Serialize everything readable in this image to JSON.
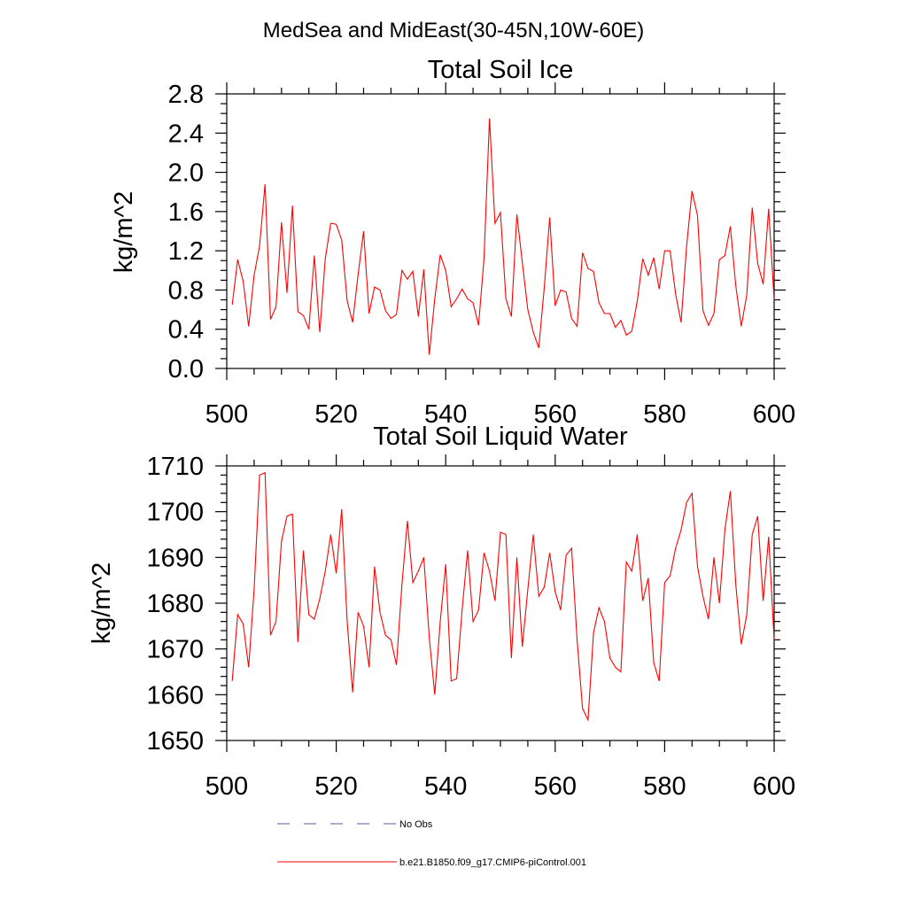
{
  "main_title": "MedSea and MidEast(30-45N,10W-60E)",
  "colors": {
    "series": "#ff0000",
    "obs": "#5a5aa0",
    "axis": "#000000"
  },
  "legend": [
    {
      "label": "No Obs",
      "color": "#5a5aa0",
      "dash": true
    },
    {
      "label": "b.e21.B1850.f09_g17.CMIP6-piControl.001",
      "color": "#ff0000",
      "dash": false
    }
  ],
  "chart_data": [
    {
      "type": "line",
      "title": "Total Soil Ice",
      "xlabel": "",
      "ylabel": "kg/m^2",
      "xlim": [
        500,
        600
      ],
      "ylim": [
        0.0,
        2.8
      ],
      "xticks": [
        500,
        520,
        540,
        560,
        580,
        600
      ],
      "xtick_labels": [
        "500",
        "520",
        "540",
        "560",
        "580",
        "600"
      ],
      "yticks": [
        0.0,
        0.4,
        0.8,
        1.2,
        1.6,
        2.0,
        2.4,
        2.8
      ],
      "ytick_labels": [
        "0.0",
        "0.4",
        "0.8",
        "1.2",
        "1.6",
        "2.0",
        "2.4",
        "2.8"
      ],
      "x_minor_step": 5,
      "y_minor_step": 0.1,
      "x_start": 501,
      "series": [
        {
          "name": "b.e21.B1850.f09_g17.CMIP6-piControl.001",
          "values": [
            0.65,
            1.11,
            0.89,
            0.43,
            0.95,
            1.25,
            1.88,
            0.5,
            0.63,
            1.49,
            0.77,
            1.66,
            0.58,
            0.54,
            0.4,
            1.15,
            0.37,
            1.12,
            1.48,
            1.47,
            1.31,
            0.69,
            0.47,
            0.96,
            1.4,
            0.56,
            0.83,
            0.8,
            0.59,
            0.51,
            0.55,
            1.0,
            0.91,
            0.99,
            0.53,
            1.01,
            0.14,
            0.71,
            1.16,
            1.0,
            0.63,
            0.71,
            0.81,
            0.71,
            0.67,
            0.44,
            1.12,
            2.55,
            1.48,
            1.59,
            0.71,
            0.53,
            1.57,
            1.08,
            0.6,
            0.37,
            0.21,
            0.82,
            1.54,
            0.64,
            0.8,
            0.78,
            0.51,
            0.43,
            1.18,
            1.02,
            0.99,
            0.67,
            0.56,
            0.56,
            0.42,
            0.49,
            0.34,
            0.38,
            0.69,
            1.12,
            0.95,
            1.13,
            0.81,
            1.2,
            1.2,
            0.76,
            0.47,
            1.24,
            1.81,
            1.56,
            0.59,
            0.44,
            0.56,
            1.11,
            1.15,
            1.45,
            0.84,
            0.43,
            0.75,
            1.64,
            1.07,
            0.86,
            1.63,
            0.7
          ]
        }
      ]
    },
    {
      "type": "line",
      "title": "Total Soil Liquid Water",
      "xlabel": "",
      "ylabel": "kg/m^2",
      "xlim": [
        500,
        600
      ],
      "ylim": [
        1650,
        1710
      ],
      "xticks": [
        500,
        520,
        540,
        560,
        580,
        600
      ],
      "xtick_labels": [
        "500",
        "520",
        "540",
        "560",
        "580",
        "600"
      ],
      "yticks": [
        1650,
        1660,
        1670,
        1680,
        1690,
        1700,
        1710
      ],
      "ytick_labels": [
        "1650",
        "1660",
        "1670",
        "1680",
        "1690",
        "1700",
        "1710"
      ],
      "x_minor_step": 5,
      "y_minor_step": 2,
      "x_start": 501,
      "series": [
        {
          "name": "b.e21.B1850.f09_g17.CMIP6-piControl.001",
          "values": [
            1663,
            1677.5,
            1675.5,
            1666,
            1683,
            1708,
            1708.5,
            1673,
            1676,
            1693.5,
            1699,
            1699.5,
            1671.5,
            1691.5,
            1677.5,
            1676.5,
            1681,
            1687,
            1695,
            1686.5,
            1700.5,
            1676,
            1660.5,
            1678,
            1675,
            1666,
            1688,
            1678,
            1673,
            1672,
            1666.5,
            1684,
            1698,
            1684.5,
            1687,
            1690,
            1672.5,
            1660,
            1676,
            1688.5,
            1663,
            1663.5,
            1678.5,
            1691.5,
            1676,
            1678.5,
            1691,
            1687,
            1680.5,
            1695.5,
            1695,
            1668,
            1690,
            1670.5,
            1683,
            1695,
            1681.5,
            1683.5,
            1691,
            1682.5,
            1678.5,
            1690.5,
            1692,
            1672,
            1657,
            1654.5,
            1673.5,
            1679,
            1676,
            1668,
            1666,
            1665,
            1689,
            1687,
            1695,
            1680.5,
            1685.5,
            1667,
            1663,
            1684.5,
            1686,
            1692,
            1696,
            1702,
            1704,
            1688,
            1681.5,
            1676.5,
            1690,
            1680,
            1696,
            1704.5,
            1684,
            1671,
            1677.5,
            1695,
            1699,
            1680.5,
            1694.5,
            1672
          ]
        }
      ]
    }
  ]
}
